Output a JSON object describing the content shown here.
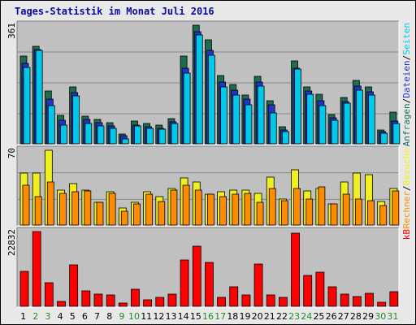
{
  "title": "Tages-Statistik im Monat Juli 2016",
  "colors": {
    "anfragen": "#1e6e4e",
    "dateien": "#2233cc",
    "seiten": "#00c8e8",
    "besuche": "#f0f020",
    "rechner": "#ff8c00",
    "kb": "#ff0000",
    "panel_bg": "#c0c0c0",
    "frame_bg": "#e8e8e8",
    "weekday_label": "#000000",
    "weekend_label": "#228b22"
  },
  "chart_data": [
    {
      "type": "bar",
      "panel": "top",
      "max_label": "361",
      "ylim": [
        0,
        361
      ],
      "legend": [
        "Anfragen",
        "/",
        "Dateien",
        "/",
        "Seiten"
      ],
      "x": [
        "1",
        "2",
        "3",
        "4",
        "5",
        "6",
        "7",
        "8",
        "9",
        "10",
        "11",
        "12",
        "13",
        "14",
        "15",
        "16",
        "17",
        "18",
        "19",
        "20",
        "21",
        "22",
        "23",
        "24",
        "25",
        "26",
        "27",
        "28",
        "29",
        "30",
        "31"
      ],
      "series": [
        {
          "name": "Anfragen",
          "color_key": "anfragen",
          "values": [
            266,
            297,
            160,
            87,
            173,
            83,
            74,
            64,
            30,
            68,
            62,
            58,
            77,
            266,
            361,
            317,
            207,
            181,
            149,
            206,
            132,
            53,
            251,
            174,
            152,
            88,
            141,
            193,
            172,
            41,
            96
          ]
        },
        {
          "name": "Dateien",
          "color_key": "dateien",
          "values": [
            246,
            288,
            137,
            72,
            156,
            74,
            64,
            55,
            24,
            57,
            52,
            48,
            67,
            230,
            340,
            285,
            187,
            163,
            135,
            187,
            119,
            43,
            231,
            160,
            130,
            80,
            129,
            176,
            159,
            38,
            70
          ]
        },
        {
          "name": "Seiten",
          "color_key": "seiten",
          "values": [
            233,
            284,
            117,
            56,
            145,
            62,
            55,
            46,
            15,
            54,
            46,
            44,
            61,
            214,
            332,
            270,
            172,
            148,
            118,
            176,
            95,
            37,
            227,
            152,
            115,
            72,
            124,
            162,
            149,
            31,
            61
          ]
        }
      ]
    },
    {
      "type": "bar",
      "panel": "middle",
      "max_label": "70",
      "ylim": [
        0,
        70
      ],
      "legend": [
        "Rechner",
        "/",
        "Besuche"
      ],
      "x": [
        "1",
        "2",
        "3",
        "4",
        "5",
        "6",
        "7",
        "8",
        "9",
        "10",
        "11",
        "12",
        "13",
        "14",
        "15",
        "16",
        "17",
        "18",
        "19",
        "20",
        "21",
        "22",
        "23",
        "24",
        "25",
        "26",
        "27",
        "28",
        "29",
        "30",
        "31"
      ],
      "series": [
        {
          "name": "Besuche",
          "color_key": "besuche",
          "values": [
            49,
            49,
            70,
            33,
            39,
            33,
            21,
            31,
            16,
            21,
            31,
            27,
            34,
            44,
            40,
            29,
            31,
            33,
            33,
            30,
            45,
            24,
            52,
            32,
            34,
            20,
            40,
            49,
            47,
            22,
            34
          ]
        },
        {
          "name": "Rechner",
          "color_key": "rechner",
          "values": [
            37,
            27,
            40,
            30,
            31,
            32,
            21,
            30,
            13,
            20,
            29,
            22,
            33,
            37,
            33,
            29,
            27,
            29,
            30,
            21,
            34,
            23,
            34,
            24,
            36,
            20,
            29,
            24,
            23,
            18,
            32
          ]
        }
      ]
    },
    {
      "type": "bar",
      "panel": "bottom",
      "max_label": "22832",
      "ylim": [
        0,
        22832
      ],
      "legend": [
        "kB"
      ],
      "x": [
        "1",
        "2",
        "3",
        "4",
        "5",
        "6",
        "7",
        "8",
        "9",
        "10",
        "11",
        "12",
        "13",
        "14",
        "15",
        "16",
        "17",
        "18",
        "19",
        "20",
        "21",
        "22",
        "23",
        "24",
        "25",
        "26",
        "27",
        "28",
        "29",
        "30",
        "31"
      ],
      "series": [
        {
          "name": "kB",
          "color_key": "kb",
          "values": [
            10770,
            22832,
            7251,
            1450,
            12616,
            4695,
            3626,
            3535,
            1016,
            5272,
            1951,
            2743,
            3636,
            14050,
            18384,
            13320,
            2800,
            5990,
            3370,
            12800,
            3380,
            2800,
            22400,
            9328,
            10470,
            5925,
            3625,
            3000,
            3970,
            1290,
            4525
          ]
        }
      ]
    }
  ],
  "days": [
    {
      "label": "1",
      "weekend": false
    },
    {
      "label": "2",
      "weekend": true
    },
    {
      "label": "3",
      "weekend": true
    },
    {
      "label": "4",
      "weekend": false
    },
    {
      "label": "5",
      "weekend": false
    },
    {
      "label": "6",
      "weekend": false
    },
    {
      "label": "7",
      "weekend": false
    },
    {
      "label": "8",
      "weekend": false
    },
    {
      "label": "9",
      "weekend": true
    },
    {
      "label": "10",
      "weekend": true
    },
    {
      "label": "11",
      "weekend": false
    },
    {
      "label": "12",
      "weekend": false
    },
    {
      "label": "13",
      "weekend": false
    },
    {
      "label": "14",
      "weekend": false
    },
    {
      "label": "15",
      "weekend": false
    },
    {
      "label": "16",
      "weekend": true
    },
    {
      "label": "17",
      "weekend": true
    },
    {
      "label": "18",
      "weekend": false
    },
    {
      "label": "19",
      "weekend": false
    },
    {
      "label": "20",
      "weekend": false
    },
    {
      "label": "21",
      "weekend": false
    },
    {
      "label": "22",
      "weekend": false
    },
    {
      "label": "23",
      "weekend": true
    },
    {
      "label": "24",
      "weekend": true
    },
    {
      "label": "25",
      "weekend": false
    },
    {
      "label": "26",
      "weekend": false
    },
    {
      "label": "27",
      "weekend": false
    },
    {
      "label": "28",
      "weekend": false
    },
    {
      "label": "29",
      "weekend": false
    },
    {
      "label": "30",
      "weekend": true
    },
    {
      "label": "31",
      "weekend": true
    }
  ]
}
